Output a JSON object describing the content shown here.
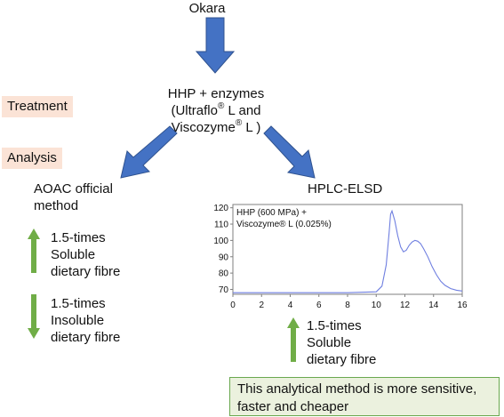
{
  "top_node": "Okara",
  "treatment": {
    "tag": "Treatment",
    "line1": "HHP + enzymes",
    "line2a": "(Ultraflo",
    "line2b": " L  and",
    "line3a": "Viscozyme",
    "line3b": " L )",
    "reg_mark": "®"
  },
  "analysis_tag": "Analysis",
  "left_branch": {
    "title_line1": "AOAC official",
    "title_line2": "method",
    "up_result": [
      "1.5-times",
      "Soluble",
      "dietary fibre"
    ],
    "down_result": [
      "1.5-times",
      "Insoluble",
      "dietary fibre"
    ]
  },
  "right_branch": {
    "title": "HPLC-ELSD",
    "result": [
      "1.5-times",
      "Soluble",
      "dietary fibre"
    ]
  },
  "conclusion": {
    "line1": "This analytical method is more sensitive,",
    "line2": "faster and cheaper"
  },
  "colors": {
    "big_arrow": "#4472c4",
    "green_arrow": "#70ad47",
    "tag_bg": "#fbe3d6",
    "callout_bg": "#ebf1de",
    "trace": "#6f7fe0"
  },
  "chart_data": {
    "type": "line",
    "legend_line1": "HHP (600 MPa) +",
    "legend_line2": "Viscozyme® L (0.025%)",
    "xlim": [
      0,
      16
    ],
    "ylim": [
      67,
      122
    ],
    "xticks": [
      "0",
      "2",
      "4",
      "6",
      "8",
      "10",
      "12",
      "14",
      "16"
    ],
    "yticks": [
      "70",
      "80",
      "90",
      "100",
      "110",
      "120"
    ],
    "series": [
      {
        "x": [
          0,
          2,
          4,
          6,
          8,
          10,
          10.4,
          10.7,
          10.9,
          11.0,
          11.1,
          11.3,
          11.5,
          11.7,
          11.9,
          12.1,
          12.3,
          12.5,
          12.7,
          12.9,
          13.1,
          13.3,
          13.6,
          13.9,
          14.2,
          14.5,
          14.8,
          15.2,
          15.6,
          16
        ],
        "y": [
          68,
          68,
          68,
          68,
          68,
          68.5,
          72,
          85,
          105,
          116,
          118,
          112,
          103,
          96,
          93,
          94,
          97,
          99,
          100,
          99.5,
          98,
          95,
          90,
          84,
          79,
          75,
          72.5,
          70.5,
          69.5,
          69
        ]
      }
    ]
  }
}
